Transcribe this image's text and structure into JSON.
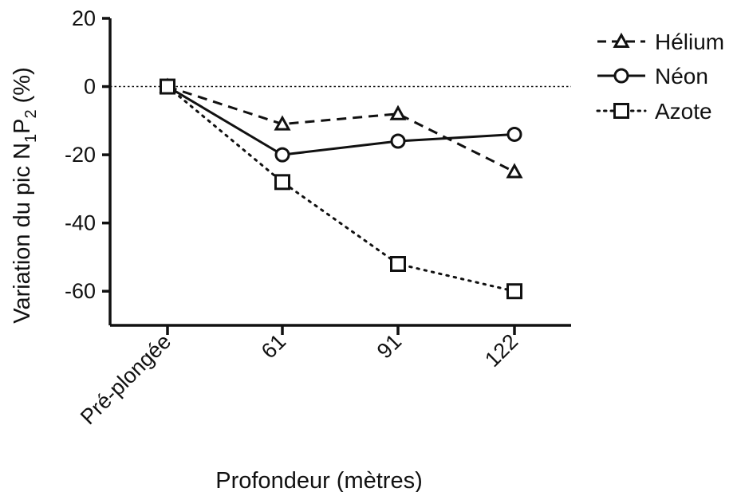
{
  "chart_data": {
    "type": "line",
    "categories": [
      "Pré-plongée",
      "61",
      "91",
      "122"
    ],
    "xlabel": "Profondeur (mètres)",
    "ylabel": {
      "prefix": "Variation du pic N",
      "sub1": "1",
      "mid": "P",
      "sub2": "2",
      "suffix": " (%)"
    },
    "ylim": [
      -70,
      20
    ],
    "yticks": [
      20,
      0,
      -20,
      -40,
      -60
    ],
    "reference_line": 0,
    "series": [
      {
        "name": "Hélium",
        "values": [
          0,
          -11,
          -8,
          -25
        ],
        "marker": "triangle",
        "line": "dashed"
      },
      {
        "name": "Néon",
        "values": [
          0,
          -20,
          -16,
          -14
        ],
        "marker": "circle",
        "line": "solid"
      },
      {
        "name": "Azote",
        "values": [
          0,
          -28,
          -52,
          -60
        ],
        "marker": "square",
        "line": "dotted"
      }
    ],
    "legend_position": "top-right",
    "color": "#111111"
  }
}
